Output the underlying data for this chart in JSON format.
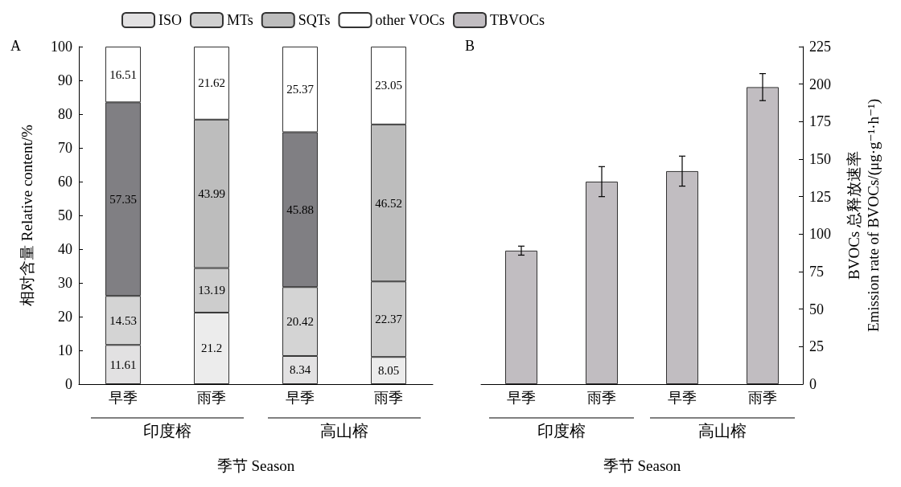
{
  "chart_data": [
    {
      "type": "bar",
      "stacked": true,
      "ylabel": "相对含量 Relative content/%",
      "xlabel": "季节 Season",
      "categories": [
        "早季",
        "雨季",
        "早季",
        "雨季"
      ],
      "series": [
        {
          "name": "ISO",
          "color": "#e2e1e2",
          "colors": [
            "#e2e1e2",
            "#ececec",
            "#e2e1e2",
            "#ececec"
          ],
          "values": [
            11.61,
            21.2,
            8.34,
            8.05
          ]
        },
        {
          "name": "MTs",
          "color": "#d0d0d0",
          "colors": [
            "#d4d4d4",
            "#cdcdcd",
            "#d4d4d4",
            "#cdcdcd"
          ],
          "values": [
            14.53,
            13.19,
            20.42,
            22.37
          ]
        },
        {
          "name": "SQTs",
          "color": "#bdbdbd",
          "colors": [
            "#807f83",
            "#bdbdbd",
            "#807f83",
            "#bdbdbd"
          ],
          "values": [
            57.35,
            43.99,
            45.88,
            46.52
          ]
        },
        {
          "name": "other VOCs",
          "color": "#ffffff",
          "colors": [
            "#ffffff",
            "#ffffff",
            "#ffffff",
            "#ffffff"
          ],
          "values": [
            16.51,
            21.62,
            25.37,
            23.05
          ]
        }
      ],
      "data_labels": true,
      "ylim": [
        0,
        100
      ],
      "yticks": [
        0,
        10,
        20,
        30,
        40,
        50,
        60,
        70,
        80,
        90,
        100
      ],
      "grid": false,
      "legend": "top",
      "annotations": [
        "A",
        "印度榕",
        "高山榕"
      ]
    },
    {
      "type": "bar",
      "ylabel": "BVOCs 总释放速率\nEmission rate of BVOCs/(μg·g⁻¹·h⁻¹)",
      "xlabel": "季节 Season",
      "categories": [
        "早季",
        "雨季",
        "早季",
        "雨季"
      ],
      "series": [
        {
          "name": "TBVOCs",
          "color": "#c1bdc1",
          "values": [
            89,
            135,
            142,
            198
          ],
          "errors": [
            3,
            10,
            10,
            9
          ]
        }
      ],
      "ylim": [
        0,
        225
      ],
      "yticks": [
        0,
        25,
        50,
        75,
        100,
        125,
        150,
        175,
        200,
        225
      ],
      "grid": false,
      "legend": "top",
      "annotations": [
        "B",
        "印度榕",
        "高山榕"
      ]
    }
  ]
}
